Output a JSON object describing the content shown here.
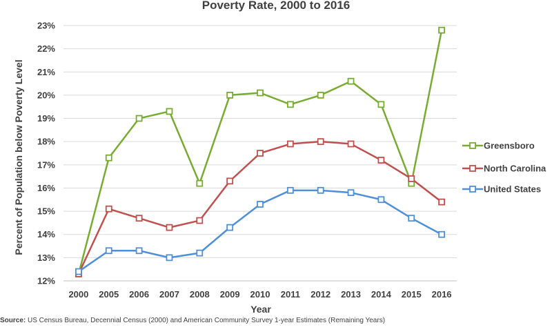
{
  "chart_data": {
    "type": "line",
    "title": "Poverty Rate, 2000 to 2016",
    "xlabel": "Year",
    "ylabel": "Percent of Population below Poverty Level",
    "categories": [
      "2000",
      "2005",
      "2006",
      "2007",
      "2008",
      "2009",
      "2010",
      "2011",
      "2012",
      "2013",
      "2014",
      "2015",
      "2016"
    ],
    "ylim": [
      12,
      23
    ],
    "yticks": [
      "12%",
      "13%",
      "14%",
      "15%",
      "16%",
      "17%",
      "18%",
      "19%",
      "20%",
      "21%",
      "22%",
      "23%"
    ],
    "grid": true,
    "legend_position": "right",
    "series": [
      {
        "name": "Greensboro",
        "color": "#77AC30",
        "values": [
          12.3,
          17.3,
          19.0,
          19.3,
          16.2,
          20.0,
          20.1,
          19.6,
          20.0,
          20.6,
          19.6,
          16.2,
          22.8
        ]
      },
      {
        "name": "North Carolina",
        "color": "#C0504D",
        "values": [
          12.3,
          15.1,
          14.7,
          14.3,
          14.6,
          16.3,
          17.5,
          17.9,
          18.0,
          17.9,
          17.2,
          16.4,
          15.4
        ]
      },
      {
        "name": "United States",
        "color": "#4F8FD8",
        "values": [
          12.4,
          13.3,
          13.3,
          13.0,
          13.2,
          14.3,
          15.3,
          15.9,
          15.9,
          15.8,
          15.5,
          14.7,
          14.0
        ]
      }
    ]
  },
  "source": {
    "label": "Source:",
    "text": "US Census Bureau, Decennial Census (2000) and American Community Survey 1-year Estimates (Remaining Years)"
  }
}
